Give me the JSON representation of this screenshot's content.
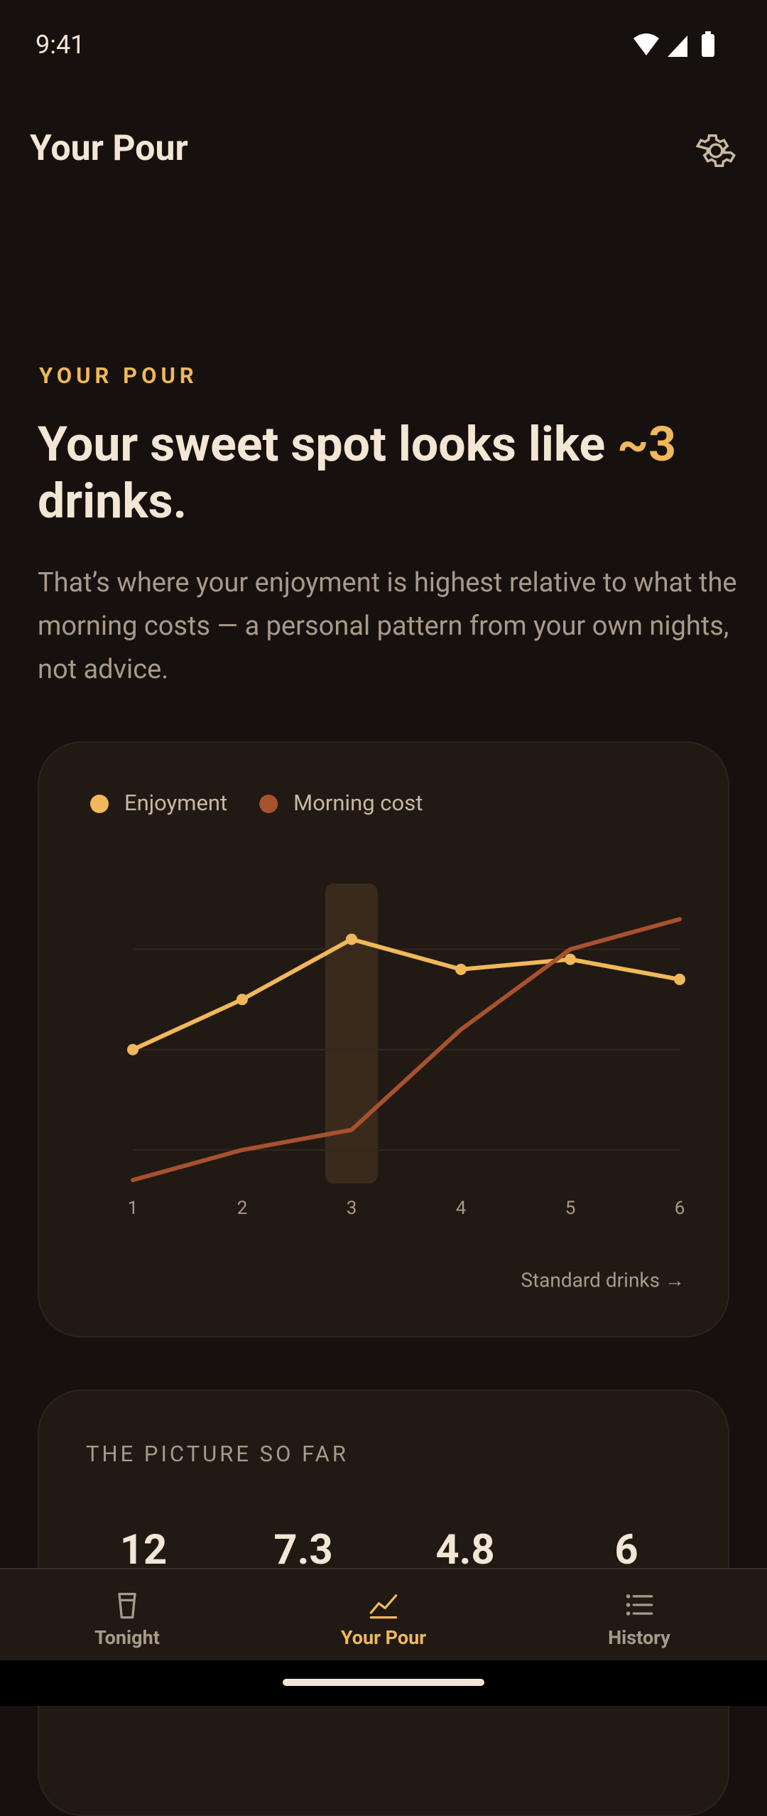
{
  "status_bar": {
    "time": "9:41"
  },
  "app_bar": {
    "title": "Your Pour"
  },
  "hero": {
    "eyebrow": "YOUR POUR",
    "headline_start": "Your sweet spot looks like ",
    "headline_highlight": "~3",
    "headline_end": " drinks.",
    "body": "That’s where your enjoyment is highest relative to what the morning costs — a personal pattern from your own nights, not advice."
  },
  "chart_data": {
    "type": "line",
    "categories": [
      "1",
      "2",
      "3",
      "4",
      "5",
      "6"
    ],
    "series": [
      {
        "name": "Enjoyment",
        "color": "#f0b85a",
        "markers": true,
        "values": [
          2.0,
          2.5,
          3.1,
          2.8,
          2.9,
          2.7
        ]
      },
      {
        "name": "Morning cost",
        "color": "#a8512f",
        "markers": false,
        "values": [
          0.7,
          1.0,
          1.2,
          2.2,
          3.0,
          3.3
        ]
      }
    ],
    "ylim": [
      0.5,
      3.5
    ],
    "yticks": [
      1,
      2,
      3
    ],
    "grid": true,
    "highlight_category": 2,
    "legend": "top-left",
    "x_label": "Standard drinks →"
  },
  "stats": {
    "title": "THE PICTURE SO FAR",
    "values": [
      "12",
      "7.3",
      "4.8",
      "6"
    ]
  },
  "nav": {
    "items": [
      "Tonight",
      "Your Pour",
      "History"
    ],
    "active": 1
  }
}
